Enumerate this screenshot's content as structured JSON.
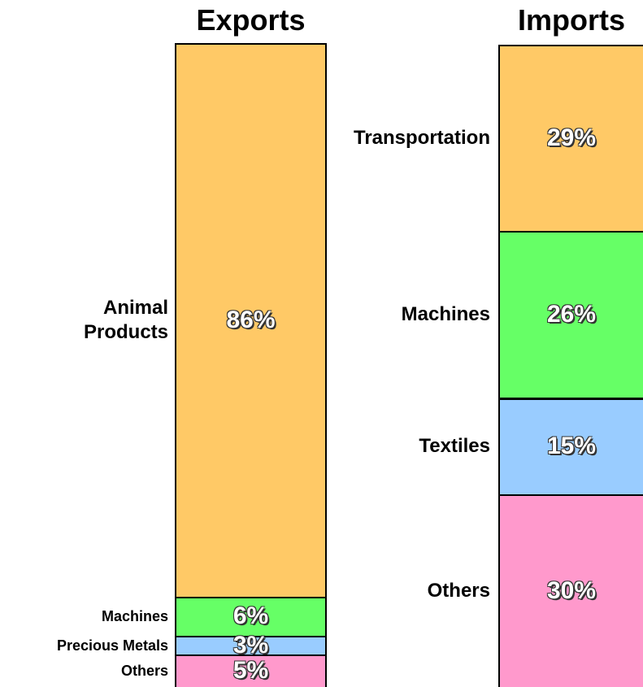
{
  "chart_data": [
    {
      "type": "stacked_bar",
      "title": "Exports",
      "categories": [
        "Animal Products",
        "Machines",
        "Precious Metals",
        "Others"
      ],
      "values": [
        86,
        6,
        3,
        5
      ],
      "value_labels": [
        "86%",
        "6%",
        "3%",
        "5%"
      ],
      "colors": [
        "#ffc966",
        "#66ff66",
        "#99ccff",
        "#ff99cc"
      ]
    },
    {
      "type": "stacked_bar",
      "title": "Imports",
      "categories": [
        "Transportation",
        "Machines",
        "Textiles",
        "Others"
      ],
      "values": [
        29,
        26,
        15,
        30
      ],
      "value_labels": [
        "29%",
        "26%",
        "15%",
        "30%"
      ],
      "colors": [
        "#ffc966",
        "#66ff66",
        "#99ccff",
        "#ff99cc"
      ]
    }
  ]
}
